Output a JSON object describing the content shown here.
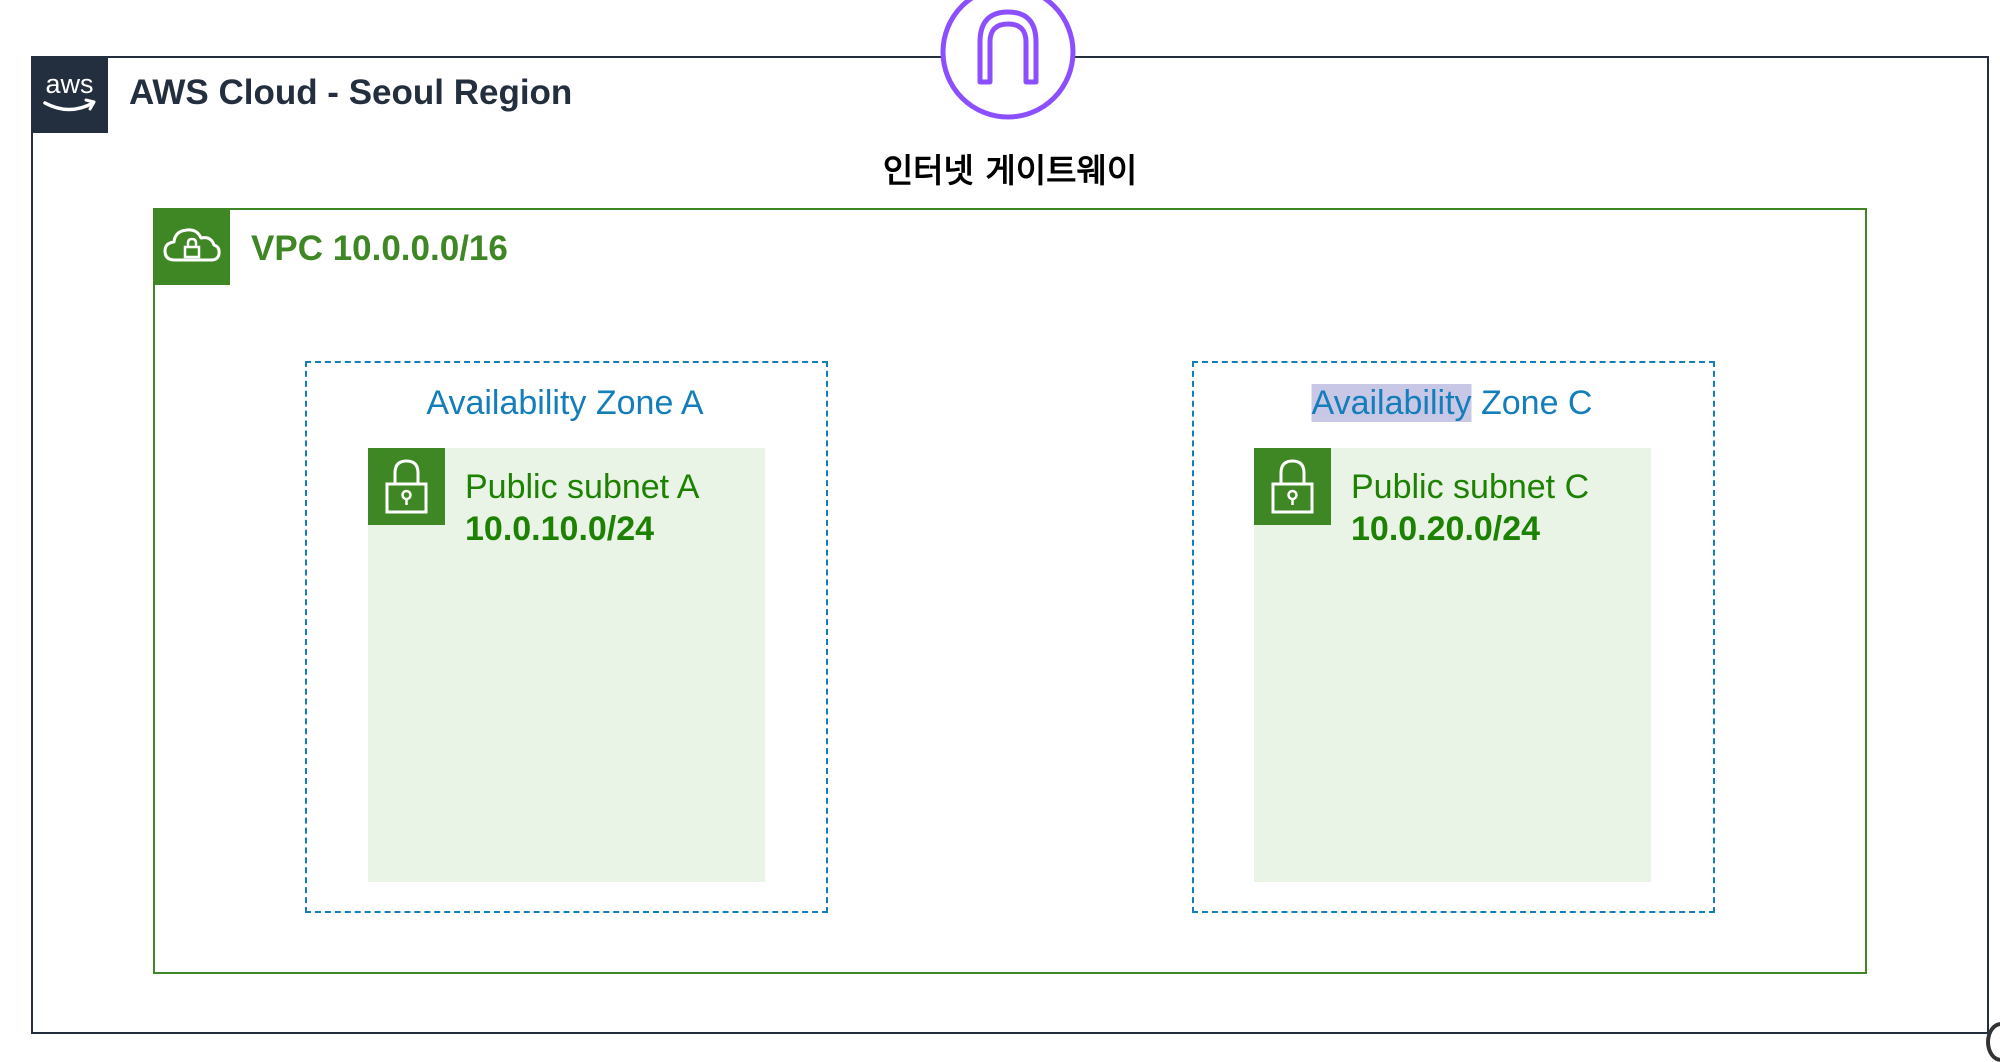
{
  "diagram": {
    "cloud": {
      "title": "AWS Cloud - Seoul Region",
      "logo_text": "aws",
      "logo_icon": "aws-logo-icon"
    },
    "internet_gateway": {
      "label": "인터넷 게이트웨이",
      "icon": "internet-gateway-icon"
    },
    "vpc": {
      "title": "VPC 10.0.0.0/16",
      "icon": "vpc-cloud-lock-icon"
    },
    "zones": [
      {
        "title_highlight": "",
        "title_rest": "Availability Zone A",
        "subnet": {
          "name": "Public subnet A",
          "cidr": "10.0.10.0/24",
          "icon": "padlock-icon"
        }
      },
      {
        "title_highlight": "Availability",
        "title_rest": " Zone C",
        "subnet": {
          "name": "Public subnet C",
          "cidr": "10.0.20.0/24",
          "icon": "padlock-icon"
        }
      }
    ]
  },
  "colors": {
    "cloud_border": "#232f3e",
    "vpc_green": "#3f8624",
    "az_blue": "#147eba",
    "subnet_fill": "#e9f3e6",
    "gateway_purple": "#8c4fff",
    "text_highlight": "#c8c8e6"
  }
}
